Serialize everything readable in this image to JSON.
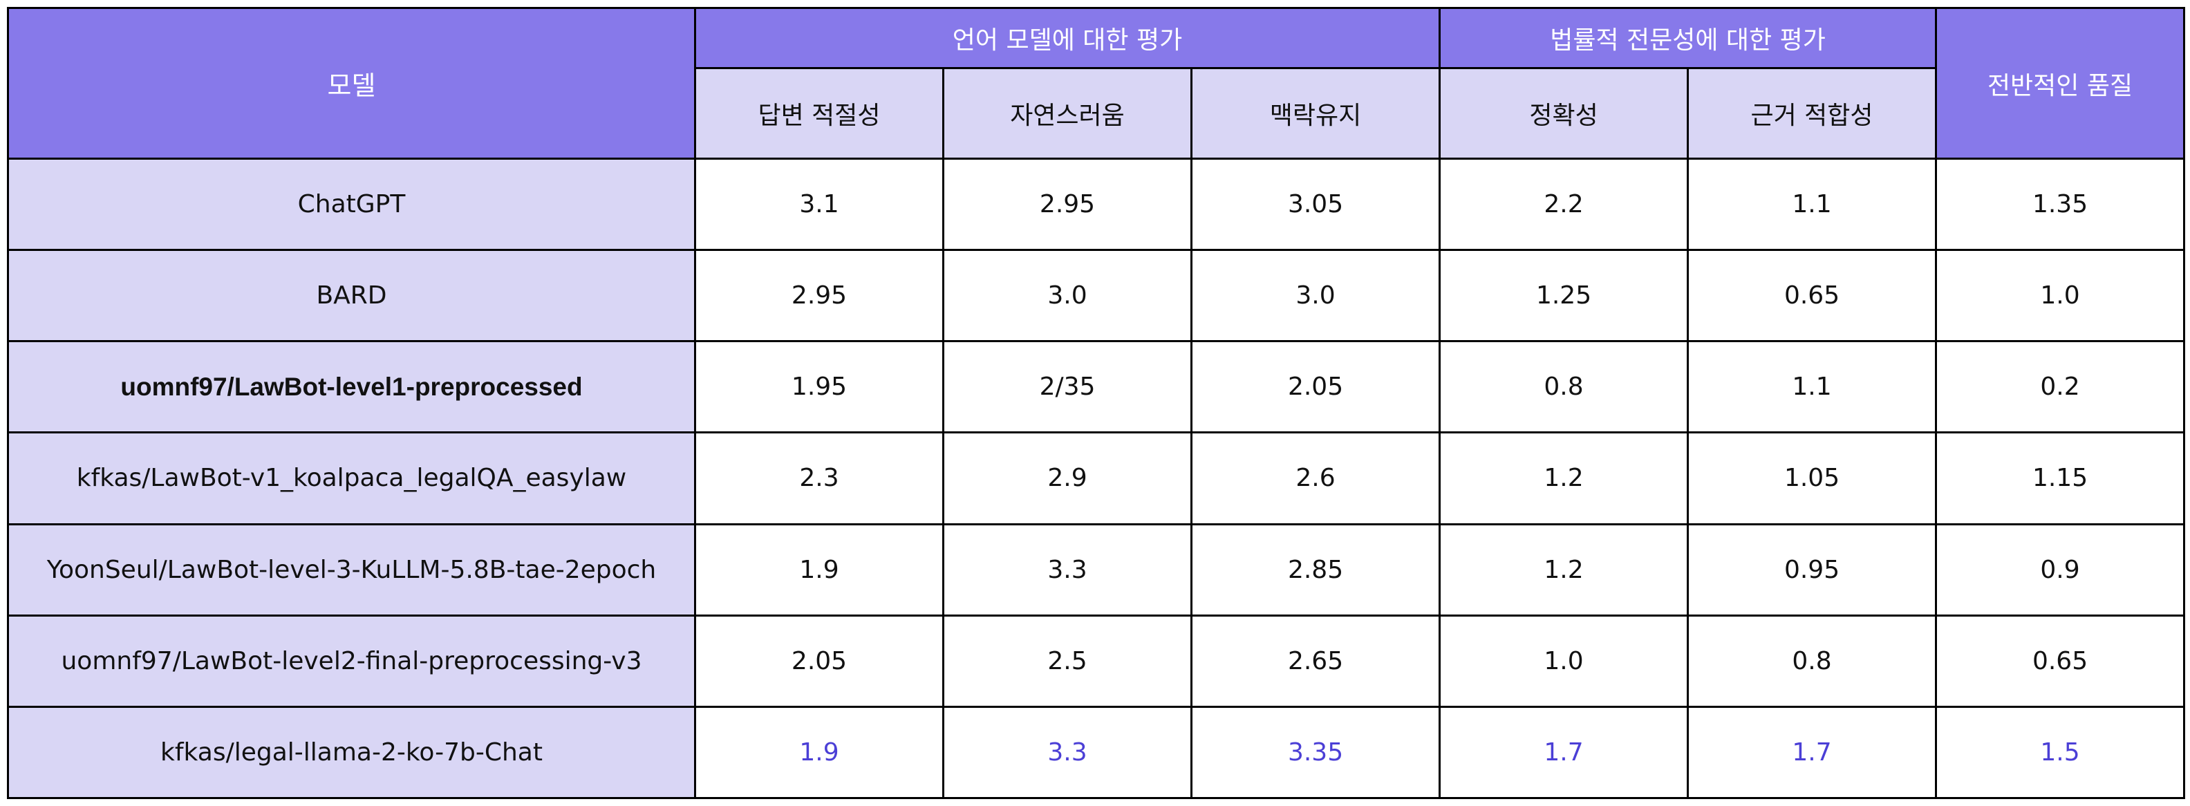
{
  "chart_data": {
    "type": "table",
    "header": {
      "model": "모델",
      "group_language": "언어 모델에 대한 평가",
      "group_legal": "법률적 전문성에 대한 평가",
      "overall": "전반적인 품질",
      "sub_columns": [
        "답변 적절성",
        "자연스러움",
        "맥락유지",
        "정확성",
        "근거 적합성"
      ]
    },
    "rows": [
      {
        "model": "ChatGPT",
        "values": [
          "3.1",
          "2.95",
          "3.05",
          "2.2",
          "1.1",
          "1.35"
        ],
        "bold": false,
        "highlight": false
      },
      {
        "model": "BARD",
        "values": [
          "2.95",
          "3.0",
          "3.0",
          "1.25",
          "0.65",
          "1.0"
        ],
        "bold": false,
        "highlight": false
      },
      {
        "model": "uomnf97/LawBot-level1-preprocessed",
        "values": [
          "1.95",
          "2/35",
          "2.05",
          "0.8",
          "1.1",
          "0.2"
        ],
        "bold": true,
        "highlight": false
      },
      {
        "model": "kfkas/LawBot-v1_koalpaca_legalQA_easylaw",
        "values": [
          "2.3",
          "2.9",
          "2.6",
          "1.2",
          "1.05",
          "1.15"
        ],
        "bold": false,
        "highlight": false
      },
      {
        "model": "YoonSeul/LawBot-level-3-KuLLM-5.8B-tae-2epoch",
        "values": [
          "1.9",
          "3.3",
          "2.85",
          "1.2",
          "0.95",
          "0.9"
        ],
        "bold": false,
        "highlight": false
      },
      {
        "model": "uomnf97/LawBot-level2-final-preprocessing-v3",
        "values": [
          "2.05",
          "2.5",
          "2.65",
          "1.0",
          "0.8",
          "0.65"
        ],
        "bold": false,
        "highlight": false
      },
      {
        "model": "kfkas/legal-llama-2-ko-7b-Chat",
        "values": [
          "1.9",
          "3.3",
          "3.35",
          "1.7",
          "1.7",
          "1.5"
        ],
        "bold": false,
        "highlight": true
      }
    ],
    "colors": {
      "header_accent": "#8779ea",
      "header_light": "#d9d6f5",
      "highlight_text": "#4b3fd6"
    }
  }
}
